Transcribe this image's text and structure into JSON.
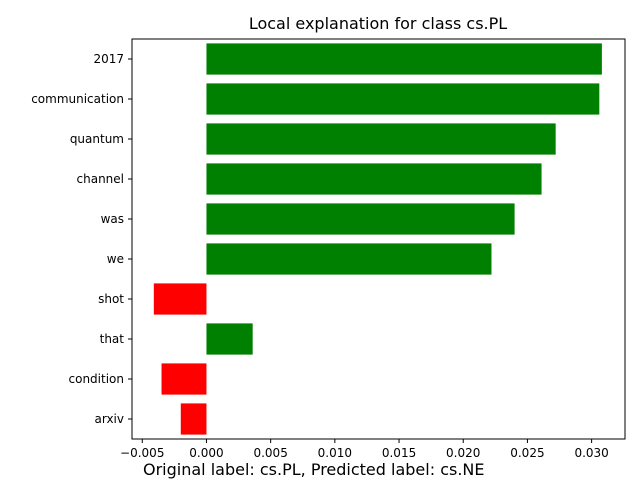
{
  "chart_data": {
    "type": "bar",
    "orientation": "horizontal",
    "title": "Local explanation for class cs.PL",
    "caption": "Original label: cs.PL, Predicted label: cs.NE",
    "xlabel": "",
    "ylabel": "",
    "xlim": [
      -0.0058,
      0.0326
    ],
    "xticks": [
      "−0.005",
      "0.000",
      "0.005",
      "0.010",
      "0.015",
      "0.020",
      "0.025",
      "0.030"
    ],
    "xtick_values": [
      -0.005,
      0.0,
      0.005,
      0.01,
      0.015,
      0.02,
      0.025,
      0.03
    ],
    "grid": false,
    "legend": "none",
    "categories": [
      "2017",
      "communication",
      "quantum",
      "channel",
      "was",
      "we",
      "shot",
      "that",
      "condition",
      "arxiv"
    ],
    "values": [
      0.0308,
      0.0306,
      0.0272,
      0.0261,
      0.024,
      0.0222,
      -0.0041,
      0.0036,
      -0.0035,
      -0.002
    ],
    "positive_color": "#008000",
    "negative_color": "#ff0000"
  }
}
